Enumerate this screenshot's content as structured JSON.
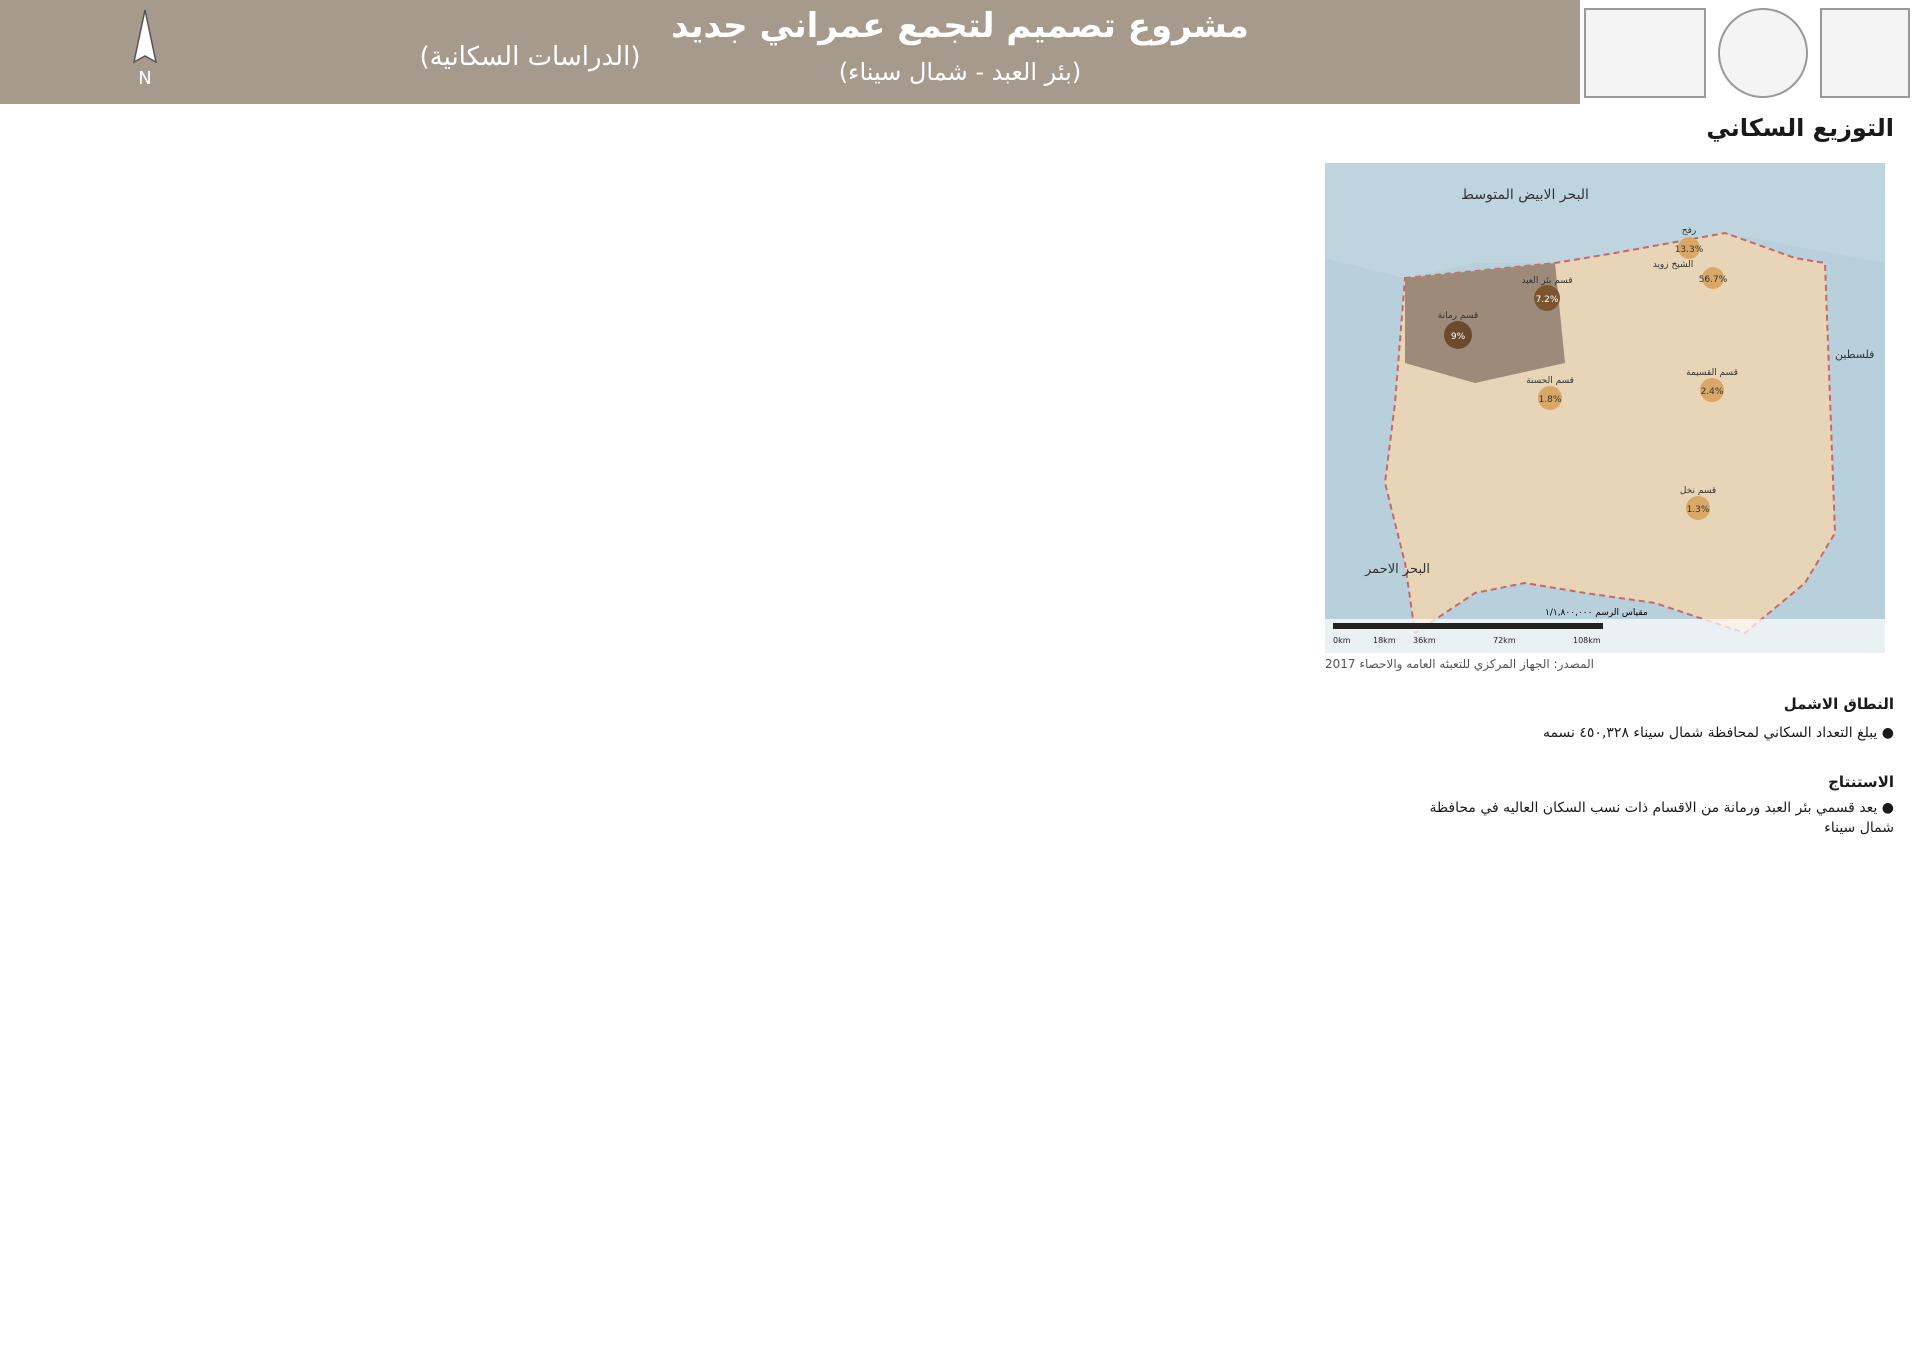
{
  "header": {
    "title": "مشروع تصميم لتجمع عمراني جديد",
    "subtitle": "(بئر العبد - شمال سيناء)",
    "studies": "(الدراسات السكانية)",
    "north": "N"
  },
  "distribution": {
    "title": "التوزيع السكاني",
    "map": {
      "sea": "البحر الابيض المتوسط",
      "red_sea": "البحر الاحمر",
      "palestine": "فلسطين",
      "scale": "مقياس الرسم ١/١,٨٠٠,٠٠٠",
      "scale_ticks": [
        "0km",
        "18km",
        "36km",
        "72km",
        "108km"
      ],
      "regions": [
        {
          "name": "قسم بئر العبد",
          "pct": "7.2%"
        },
        {
          "name": "قسم رمانة",
          "pct": "9%"
        },
        {
          "name": "قسم الحسنة",
          "pct": "1.8%"
        },
        {
          "name": "قسم القسيمة",
          "pct": "2.4%"
        },
        {
          "name": "قسم نخل",
          "pct": "1.3%"
        },
        {
          "name": "رفح",
          "pct": "13.3%"
        },
        {
          "name": "الشيخ زويد",
          "pct": "56.7%"
        }
      ]
    },
    "source": "المصدر: الجهاز المركزي للتعبئه العامه والاحصاء 2017",
    "region": "النطاق الاشمل",
    "text1": "يبلغ التعداد السكاني لمحافظة شمال سيناء ٤٥٠,٣٢٨ نسمه",
    "concl_title": "الاستنتاج",
    "concl": "يعد قسمي بئر العبد ورمانة من الاقسام ذات نسب السكان العاليه في محافظة شمال سيناء"
  }
}
